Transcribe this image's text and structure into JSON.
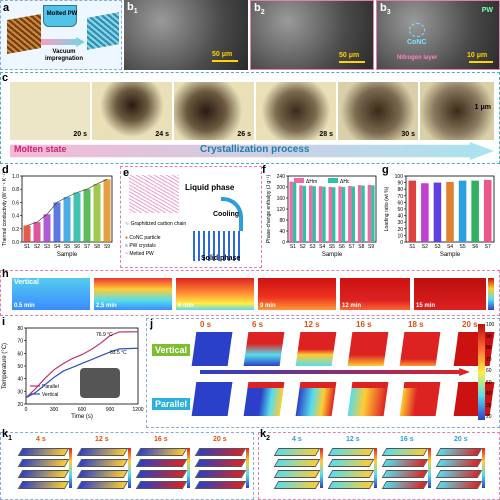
{
  "labels": {
    "a": "a",
    "b1": "b",
    "b1s": "1",
    "b2": "b",
    "b2s": "2",
    "b3": "b",
    "b3s": "3",
    "c": "c",
    "d": "d",
    "e": "e",
    "f": "f",
    "g": "g",
    "h": "h",
    "i": "i",
    "j": "j",
    "k1": "k",
    "k1s": "1",
    "k2": "k",
    "k2s": "2"
  },
  "panel_a": {
    "title": "Molted PW",
    "process": "Vacuum impregnation"
  },
  "panel_b": {
    "scale1": "50 μm",
    "scale2": "50 μm",
    "scale3": "10 μm",
    "ann_pw": "PW",
    "ann_conc": "CoNC",
    "ann_nitro": "Nitrogen layer"
  },
  "panel_c": {
    "times": [
      "20 s",
      "24 s",
      "26 s",
      "28 s",
      "30 s"
    ],
    "scale": "1 μm",
    "molten": "Molten state",
    "process": "Crystallization process"
  },
  "panel_e": {
    "liquid": "Liquid phase",
    "cooling": "Cooling",
    "solid": "Solid phase",
    "legend": [
      "Graphitized carbon chain",
      "CoNC particle",
      "PW crystals",
      "Melted PW"
    ]
  },
  "panel_h": {
    "vertical": "Vertical",
    "times": [
      "0.5 min",
      "2.5 min",
      "6 min",
      "9 min",
      "12 min",
      "15 min"
    ]
  },
  "panel_i": {
    "ann1": "76.9 °C",
    "ann2": "63.5 °C",
    "legend": [
      "Parallel",
      "Vertical"
    ]
  },
  "panel_j": {
    "times": [
      "0 s",
      "6 s",
      "12 s",
      "16 s",
      "18 s",
      "20 s"
    ],
    "row1": "Vertical",
    "row2": "Parallel",
    "cbar": [
      "100",
      "90",
      "80",
      "70",
      "60",
      "50",
      "40",
      "30",
      "20"
    ]
  },
  "panel_k1": {
    "times": [
      "4 s",
      "12 s",
      "16 s",
      "20 s"
    ]
  },
  "panel_k2": {
    "times": [
      "4 s",
      "12 s",
      "16 s",
      "20 s"
    ]
  },
  "chart_data": [
    {
      "id": "d",
      "type": "line",
      "title": "",
      "xlabel": "Sample",
      "ylabel": "Thermal conductivity (W m⁻¹ K⁻¹)",
      "categories": [
        "S1",
        "S2",
        "S3",
        "S4",
        "S5",
        "S6",
        "S7",
        "S8",
        "S9"
      ],
      "values": [
        0.25,
        0.3,
        0.42,
        0.6,
        0.68,
        0.75,
        0.8,
        0.88,
        0.95
      ],
      "ylim": [
        0.0,
        1.0
      ],
      "yticks": [
        "0.0",
        "0.2",
        "0.4",
        "0.6",
        "0.8",
        "1.0"
      ]
    },
    {
      "id": "f",
      "type": "bar",
      "xlabel": "Sample",
      "ylabel": "Phase-change enthalpy (J g⁻¹)",
      "categories": [
        "S1",
        "S2",
        "S3",
        "S4",
        "S5",
        "S6",
        "S7",
        "S8",
        "S9"
      ],
      "series": [
        {
          "name": "ΔHm",
          "values": [
            220,
            206,
            205,
            203,
            200,
            202,
            204,
            207,
            208
          ]
        },
        {
          "name": "ΔHc",
          "values": [
            218,
            204,
            203,
            201,
            199,
            200,
            202,
            205,
            206
          ]
        }
      ],
      "ylim": [
        0,
        240
      ],
      "yticks": [
        "0",
        "40",
        "80",
        "120",
        "160",
        "200",
        "240"
      ]
    },
    {
      "id": "g",
      "type": "bar",
      "xlabel": "Sample",
      "ylabel": "Loading ratio (wt %)",
      "categories": [
        "S1",
        "S2",
        "S3",
        "S4",
        "S5",
        "S6",
        "S7"
      ],
      "values": [
        93,
        89,
        90,
        91,
        93,
        93,
        94
      ],
      "ylim": [
        0,
        100
      ],
      "yticks": [
        "0",
        "10",
        "20",
        "30",
        "40",
        "50",
        "60",
        "70",
        "80",
        "90",
        "100"
      ]
    },
    {
      "id": "i",
      "type": "line",
      "xlabel": "Time (s)",
      "ylabel": "Temperature (°C)",
      "xlim": [
        0,
        1200
      ],
      "ylim": [
        20,
        80
      ],
      "xticks": [
        "0",
        "300",
        "600",
        "900",
        "1200"
      ],
      "yticks": [
        "20",
        "30",
        "40",
        "50",
        "60",
        "70",
        "80"
      ],
      "series": [
        {
          "name": "Parallel",
          "x": [
            0,
            100,
            200,
            300,
            400,
            500,
            600,
            700,
            800,
            900,
            1000,
            1200
          ],
          "y": [
            25,
            32,
            40,
            47,
            52,
            56,
            59,
            63,
            68,
            74,
            76.9,
            77
          ]
        },
        {
          "name": "Vertical",
          "x": [
            0,
            100,
            200,
            300,
            400,
            500,
            600,
            700,
            800,
            900,
            1000,
            1200
          ],
          "y": [
            25,
            29,
            35,
            41,
            46,
            49,
            52,
            55,
            58,
            61,
            63.5,
            64
          ]
        }
      ]
    }
  ]
}
